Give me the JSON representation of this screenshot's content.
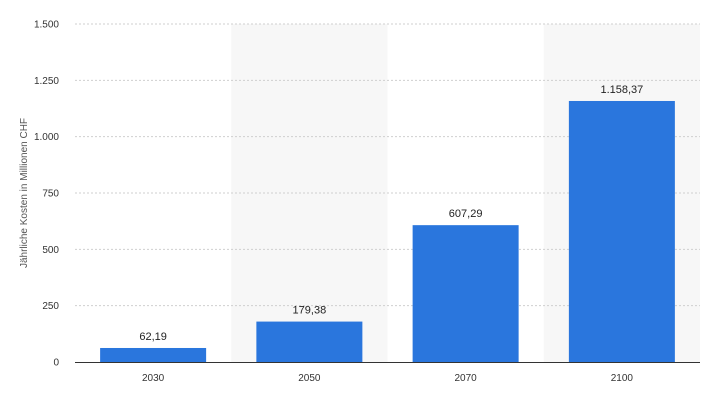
{
  "chart_data": {
    "type": "bar",
    "categories": [
      "2030",
      "2050",
      "2070",
      "2100"
    ],
    "values": [
      62.19,
      179.38,
      607.29,
      1158.37
    ],
    "value_labels": [
      "62,19",
      "179,38",
      "607,29",
      "1.158,37"
    ],
    "ylabel": "Jährliche Kosten in Millionen CHF",
    "ylim": [
      0,
      1500
    ],
    "yticks": [
      0,
      250,
      500,
      750,
      1000,
      1250,
      1500
    ],
    "ytick_labels": [
      "0",
      "250",
      "500",
      "750",
      "1.000",
      "1.250",
      "1.500"
    ],
    "grid": true,
    "bar_color": "#2a76dd",
    "alt_band_color": "#f7f7f7"
  }
}
